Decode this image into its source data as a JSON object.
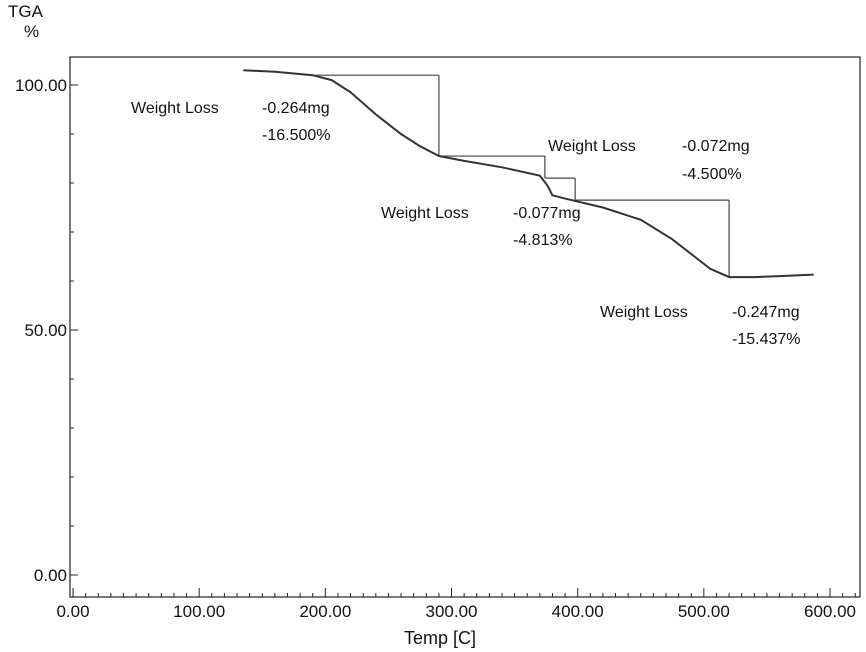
{
  "chart_data": {
    "type": "line",
    "title": "",
    "ylabel": "TGA",
    "yunit": "%",
    "xlabel": "Temp  [C]",
    "xlim": [
      0,
      600
    ],
    "ylim": [
      0,
      105
    ],
    "x_ticks": [
      0,
      100,
      200,
      300,
      400,
      500,
      600
    ],
    "x_tick_labels": [
      "0.00",
      "100.00",
      "200.00",
      "300.00",
      "400.00",
      "500.00",
      "600.00"
    ],
    "y_ticks": [
      0,
      50,
      100
    ],
    "y_tick_labels": [
      "0.00",
      "50.00",
      "100.00"
    ],
    "grid": false,
    "series": [
      {
        "x": [
          135,
          160,
          190,
          205,
          220,
          240,
          260,
          275,
          290,
          310,
          340,
          370,
          376,
          380,
          392,
          420,
          450,
          475,
          490,
          505,
          520,
          540,
          560,
          587
        ],
        "y": [
          103,
          102.7,
          102,
          101,
          98.5,
          94,
          90,
          87.5,
          85.5,
          84.5,
          83.2,
          81.5,
          79.5,
          77.5,
          76.7,
          75,
          72.5,
          68.5,
          65.5,
          62.5,
          60.8,
          60.8,
          61.0,
          61.3
        ]
      }
    ],
    "steps": [
      {
        "x_start": 190,
        "x_end": 290,
        "y_top": 102,
        "y_bottom": 85.5
      },
      {
        "x_start": 290,
        "x_end": 374,
        "y_top": 85.5,
        "y_bottom": 81
      },
      {
        "x_start": 374,
        "x_end": 398,
        "y_top": 81,
        "y_bottom": 76.5
      },
      {
        "x_start": 398,
        "x_end": 520,
        "y_top": 76.5,
        "y_bottom": 60.8
      }
    ],
    "annotations": [
      {
        "label": "Weight Loss",
        "mass": "-0.264mg",
        "percent": "-16.500%"
      },
      {
        "label": "Weight Loss",
        "mass": "-0.072mg",
        "percent": "-4.500%"
      },
      {
        "label": "Weight Loss",
        "mass": "-0.077mg",
        "percent": "-4.813%"
      },
      {
        "label": "Weight Loss",
        "mass": "-0.247mg",
        "percent": "-15.437%"
      }
    ]
  }
}
